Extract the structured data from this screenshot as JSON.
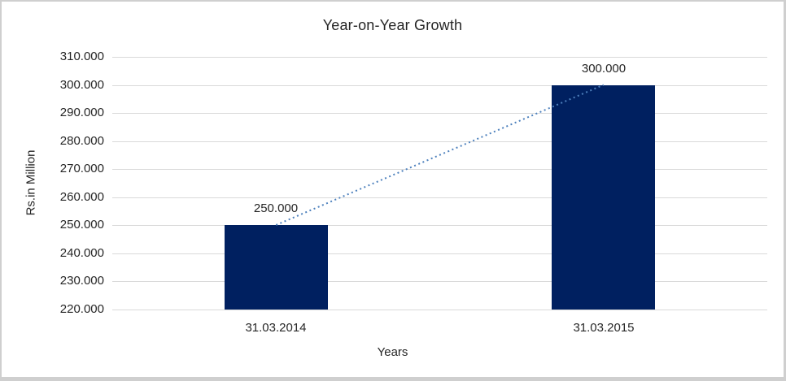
{
  "chart_data": {
    "type": "bar",
    "title": "Year-on-Year Growth",
    "xlabel": "Years",
    "ylabel": "Rs.in Million",
    "categories": [
      "31.03.2014",
      "31.03.2015"
    ],
    "values": [
      250000,
      300000
    ],
    "value_labels": [
      "250.000",
      "300.000"
    ],
    "ytick_values": [
      220000,
      230000,
      240000,
      250000,
      260000,
      270000,
      280000,
      290000,
      300000,
      310000
    ],
    "ytick_labels": [
      "220.000",
      "230.000",
      "240.000",
      "250.000",
      "260.000",
      "270.000",
      "280.000",
      "290.000",
      "300.000",
      "310.000"
    ],
    "ylim": [
      220000,
      310000
    ],
    "grid": true,
    "legend": false,
    "trendline": {
      "style": "dotted",
      "from_value": 250000,
      "to_value": 300000
    },
    "colors": {
      "bar": "#002060",
      "trendline": "#4e81bd",
      "gridline": "#d9d9d9",
      "text": "#262626",
      "frame_border": "#cfcfcf",
      "background": "#ffffff"
    }
  }
}
